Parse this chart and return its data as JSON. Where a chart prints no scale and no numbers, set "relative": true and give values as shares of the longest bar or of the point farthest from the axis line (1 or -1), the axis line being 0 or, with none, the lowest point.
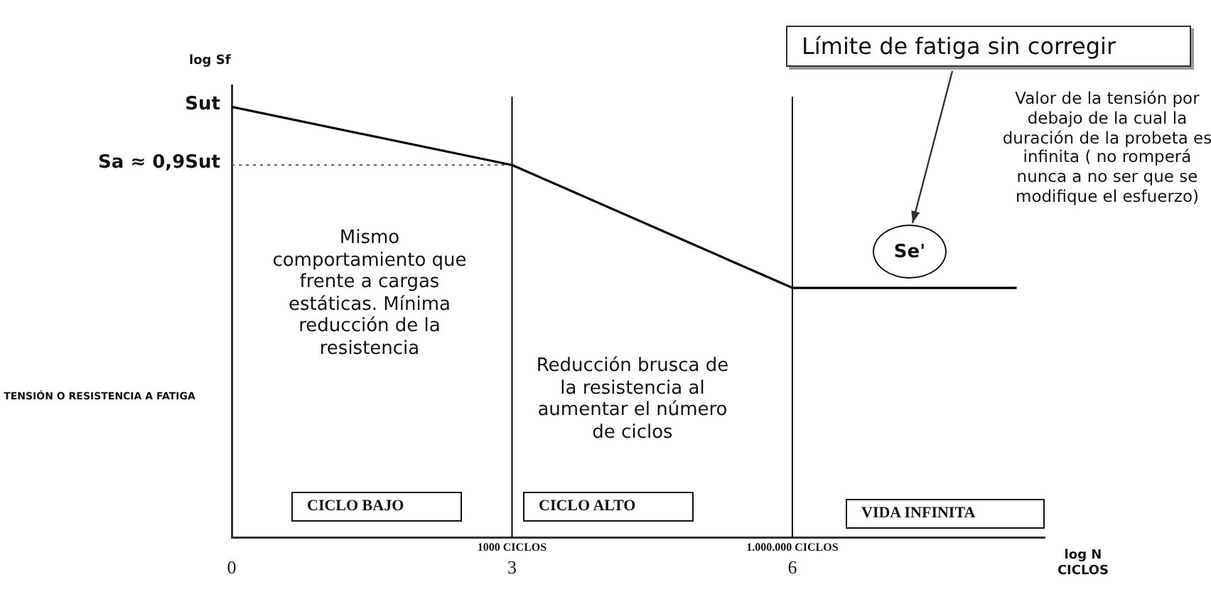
{
  "chart_data": {
    "type": "line",
    "relative": true,
    "ylabel": "log Sf",
    "xlabel": "log N CICLOS",
    "xlim": [
      0,
      8.7
    ],
    "xticks": [
      0,
      3,
      6
    ],
    "series": [
      {
        "color": "#000000",
        "x": [
          0,
          3,
          6,
          8.4
        ],
        "values": [
          1,
          0.865,
          0.58,
          0.58
        ],
        "line_style": "solid"
      },
      {
        "color": "#555555",
        "x": [
          0,
          3
        ],
        "values": [
          0.865,
          0.865
        ],
        "line_style": "dotted"
      }
    ],
    "marker": "none",
    "grid": false,
    "legend": false,
    "ref_lines": [
      {
        "axis": "x",
        "value": 3,
        "label": "1000 CICLOS",
        "color": "#000000"
      },
      {
        "axis": "x",
        "value": 6,
        "label": "1.000.000 CICLOS",
        "color": "#000000"
      }
    ],
    "annotations": [
      {
        "text": "Sut",
        "x": 0,
        "y": 1
      },
      {
        "text": "Sa ≈ 0,9Sut",
        "x": 0,
        "y": 0.865
      },
      "TENSIÓN O RESISTENCIA A FATIGA",
      "Mismo comportamiento que frente a cargas estáticas. Mínima reducción de la resistencia",
      "Reducción brusca de la resistencia al aumentar el número de ciclos",
      "CICLO BAJO",
      "CICLO ALTO",
      "VIDA INFINITA",
      "Límite de fatiga sin corregir",
      "Se'",
      "Valor de la tensión por debajo de la cual la duración de la probeta es infinita ( no romperá nunca a no ser que se modifique el esfuerzo)"
    ]
  }
}
